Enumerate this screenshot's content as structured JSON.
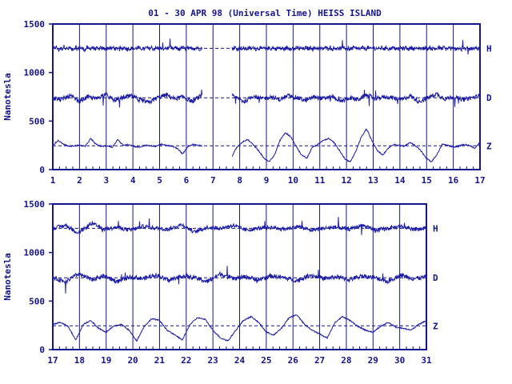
{
  "title": "01 - 30 APR 98 (Universal Time) HEISS ISLAND",
  "colors": {
    "ink": "#14148c",
    "trace": "#1a1aa6",
    "axis": "#14148c"
  },
  "chart_data": [
    {
      "type": "line",
      "ylabel": "Nanotesla",
      "ylim": [
        0,
        1500
      ],
      "yticks": [
        0,
        500,
        1000,
        1500
      ],
      "xlim": [
        1,
        17
      ],
      "xticks": [
        "1",
        "2",
        "3",
        "4",
        "5",
        "6",
        "7",
        "8",
        "9",
        "10",
        "11",
        "12",
        "13",
        "14",
        "15",
        "16",
        "17"
      ],
      "series": [
        {
          "name": "H",
          "baseline": 1250,
          "values": [
            1240,
            1255,
            1260,
            1230,
            1250,
            1245,
            1270,
            1250,
            1240,
            1260,
            1235,
            1250,
            1255,
            1240,
            1260,
            1250,
            1245,
            1230,
            1260,
            1240,
            1250,
            1265,
            1240,
            1250,
            1235,
            1255,
            1245,
            1250,
            1240,
            1255,
            1250,
            1245,
            1260,
            1240,
            1250,
            1255,
            1245,
            1250,
            1260,
            1240,
            1250,
            1245,
            1255,
            1240,
            1250,
            1260,
            1245,
            1250,
            1240,
            1255,
            1250,
            1245,
            1260,
            1240,
            1250,
            1255,
            1245,
            1250,
            1240,
            1255,
            1250,
            1245,
            1260,
            1240,
            1250,
            1255,
            1245,
            1240,
            1260,
            1250,
            1245,
            1250,
            1240,
            1255,
            1250,
            1245,
            1260,
            1240,
            1250,
            1255,
            1245,
            1250,
            1240,
            1255,
            1250,
            1245,
            1260,
            1240,
            1250,
            1255,
            1245,
            1250,
            1240,
            1255,
            1250,
            1245,
            1260,
            1240,
            1250,
            1255,
            1245,
            1250,
            1240,
            1255,
            1250,
            1245,
            1260,
            1240,
            1250,
            1255,
            1245,
            1250,
            1240,
            1255,
            1250,
            1245,
            1260,
            1240,
            1250,
            1255,
            1245,
            1250,
            1240,
            1255,
            1250,
            1245,
            1260,
            1240,
            1250,
            1255,
            1245,
            1250,
            1240,
            1255,
            1250,
            1245,
            1260,
            1240,
            1250,
            1255,
            1245,
            1250,
            1240,
            1255,
            1250,
            1245,
            1260,
            1240,
            1250,
            1255,
            1245,
            1250,
            1240,
            1255,
            1250,
            1245,
            1260,
            1240,
            1250,
            1255,
            1245,
            1250,
            1240,
            1255,
            1250,
            1245,
            1260,
            1240,
            1250,
            1255,
            1245,
            1250,
            1240,
            1255,
            1250,
            1245,
            1260,
            1240,
            1250,
            1255,
            1245,
            1250,
            1240,
            1255,
            1250,
            1245,
            1260,
            1240,
            1250,
            1255,
            1245,
            1250,
            1240,
            1255,
            1250,
            1245,
            1260,
            1240,
            1250,
            1255,
            1245,
            1250,
            1240,
            1255,
            1250,
            1245,
            1260,
            1240,
            1250,
            1255,
            1245,
            1250,
            1240,
            1255,
            1250,
            1245,
            1260,
            1240,
            1250,
            1255,
            1245,
            1250,
            1240,
            1255,
            1250,
            1245
          ]
        },
        {
          "name": "D",
          "baseline": 740,
          "values": [
            740,
            720,
            760,
            700,
            750,
            730,
            780,
            710,
            740,
            760,
            720,
            690,
            740,
            770,
            730,
            750,
            700,
            760,
            740,
            720,
            780,
            740,
            700,
            760,
            730,
            750,
            720,
            760,
            740,
            710,
            750,
            730,
            760,
            700,
            740,
            720,
            770,
            730,
            750,
            740,
            720,
            760,
            700,
            740,
            780,
            730,
            750,
            720,
            740,
            760
          ]
        },
        {
          "name": "Z",
          "baseline": 245,
          "values": [
            250,
            300,
            260,
            240,
            245,
            250,
            240,
            320,
            260,
            240,
            245,
            230,
            310,
            250,
            260,
            240,
            230,
            250,
            245,
            240,
            260,
            250,
            240,
            220,
            160,
            240,
            260,
            250,
            240,
            230,
            250,
            240,
            200,
            120,
            230,
            280,
            310,
            260,
            200,
            120,
            80,
            150,
            300,
            380,
            340,
            240,
            150,
            120,
            230,
            260,
            300,
            320,
            280,
            200,
            110,
            80,
            180,
            330,
            420,
            300,
            200,
            150,
            220,
            260,
            250,
            240,
            280,
            250,
            200,
            120,
            80,
            150,
            260,
            250,
            230,
            240,
            260,
            250,
            220,
            280
          ]
        }
      ],
      "gaps": [
        [
          6.6,
          7.7
        ]
      ]
    },
    {
      "type": "line",
      "ylabel": "Nanotesla",
      "ylim": [
        0,
        1500
      ],
      "yticks": [
        0,
        500,
        1000,
        1500
      ],
      "xlim": [
        17,
        31
      ],
      "xticks": [
        "17",
        "18",
        "19",
        "20",
        "21",
        "22",
        "23",
        "24",
        "25",
        "26",
        "27",
        "28",
        "29",
        "30",
        "31"
      ],
      "series": [
        {
          "name": "H",
          "baseline": 1250,
          "values": [
            1250,
            1280,
            1200,
            1300,
            1240,
            1260,
            1230,
            1270,
            1250,
            1240,
            1290,
            1210,
            1260,
            1250,
            1280,
            1230,
            1250,
            1260,
            1240,
            1270,
            1230,
            1250,
            1260,
            1240,
            1280,
            1230,
            1250,
            1270,
            1240,
            1250
          ]
        },
        {
          "name": "D",
          "baseline": 740,
          "values": [
            740,
            700,
            780,
            720,
            760,
            700,
            750,
            730,
            770,
            710,
            760,
            740,
            700,
            780,
            730,
            750,
            720,
            760,
            740,
            710,
            770,
            730,
            750,
            720,
            760,
            740,
            700,
            770,
            730,
            750
          ]
        },
        {
          "name": "Z",
          "baseline": 245,
          "values": [
            260,
            280,
            240,
            100,
            260,
            300,
            220,
            180,
            240,
            260,
            200,
            90,
            240,
            320,
            300,
            200,
            150,
            100,
            260,
            330,
            310,
            200,
            120,
            90,
            200,
            300,
            340,
            280,
            180,
            150,
            220,
            330,
            360,
            260,
            200,
            160,
            120,
            280,
            340,
            300,
            240,
            200,
            180,
            240,
            280,
            230,
            220,
            200,
            260,
            300
          ]
        }
      ]
    }
  ]
}
